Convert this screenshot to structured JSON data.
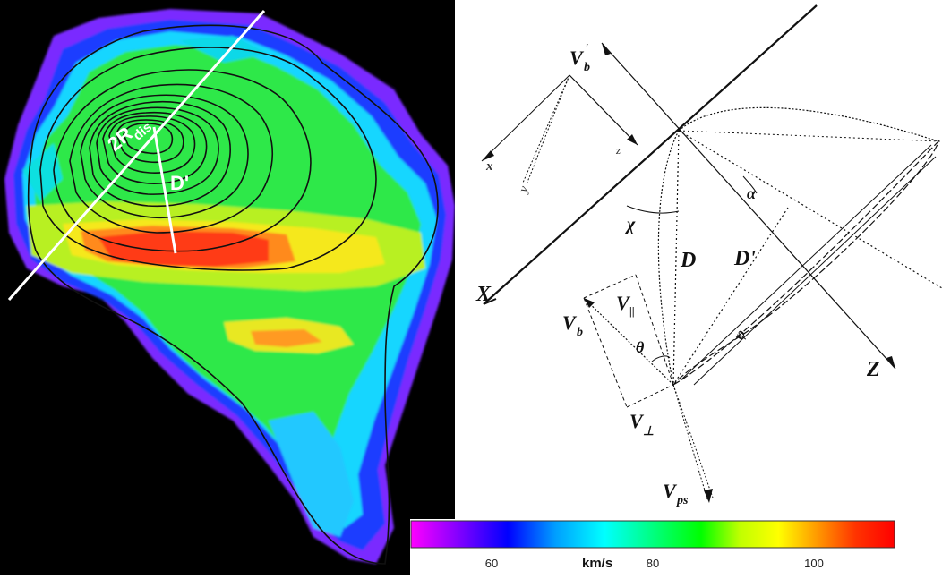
{
  "map": {
    "label_2r": "2R",
    "label_2r_sub": "dis",
    "label_d": "D'"
  },
  "colorbar": {
    "unit": "km/s",
    "ticks": [
      "60",
      "80",
      "100"
    ],
    "tick_values": [
      60,
      80,
      100
    ],
    "range": [
      50,
      110
    ],
    "colors": [
      "#ff00ff",
      "#8000ff",
      "#0000ff",
      "#00a0ff",
      "#00ffff",
      "#00ff80",
      "#00ff00",
      "#c0ff00",
      "#ffff00",
      "#ff9900",
      "#ff3300",
      "#ff0000"
    ]
  },
  "geometry": {
    "vb_prime": "V",
    "vb_prime_sub": "b",
    "vb_prime_sup": "'",
    "axis_z_small": "z",
    "axis_x_small": "x",
    "axis_y_small": "y",
    "chi": "χ",
    "alpha": "α",
    "d": "D",
    "d_prime": "D'",
    "x_axis": "X",
    "z_axis": "Z",
    "v_parallel": "V",
    "v_parallel_sub": "||",
    "vb": "V",
    "vb_sub": "b",
    "theta": "θ",
    "v_perp": "V",
    "v_perp_sub": "⊥",
    "vps": "V",
    "vps_sub": "ps",
    "phi": "φ"
  }
}
